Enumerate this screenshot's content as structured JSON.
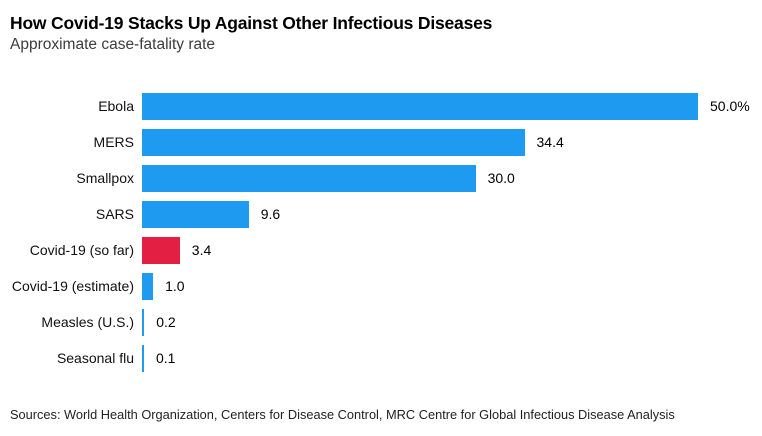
{
  "header": {
    "title": "How Covid-19 Stacks Up Against Other Infectious Diseases",
    "subtitle": "Approximate case-fatality rate"
  },
  "chart_data": {
    "type": "bar",
    "orientation": "horizontal",
    "title": "How Covid-19 Stacks Up Against Other Infectious Diseases",
    "subtitle": "Approximate case-fatality rate",
    "categories": [
      "Ebola",
      "MERS",
      "Smallpox",
      "SARS",
      "Covid-19 (so far)",
      "Covid-19 (estimate)",
      "Measles (U.S.)",
      "Seasonal flu"
    ],
    "values": [
      50.0,
      34.4,
      30.0,
      9.6,
      3.4,
      1.0,
      0.2,
      0.1
    ],
    "value_labels": [
      "50.0%",
      "34.4",
      "30.0",
      "9.6",
      "3.4",
      "1.0",
      "0.2",
      "0.1"
    ],
    "xlabel": "",
    "ylabel": "",
    "xlim": [
      0,
      50
    ],
    "grid": false,
    "legend": false,
    "colors": {
      "bar_default": "#1e9bf0",
      "bar_highlight": "#e32044",
      "highlight_category": "Covid-19 (so far)"
    }
  },
  "footer": {
    "sources": "Sources: World Health Organization, Centers for Disease Control, MRC Centre for Global Infectious Disease Analysis"
  }
}
